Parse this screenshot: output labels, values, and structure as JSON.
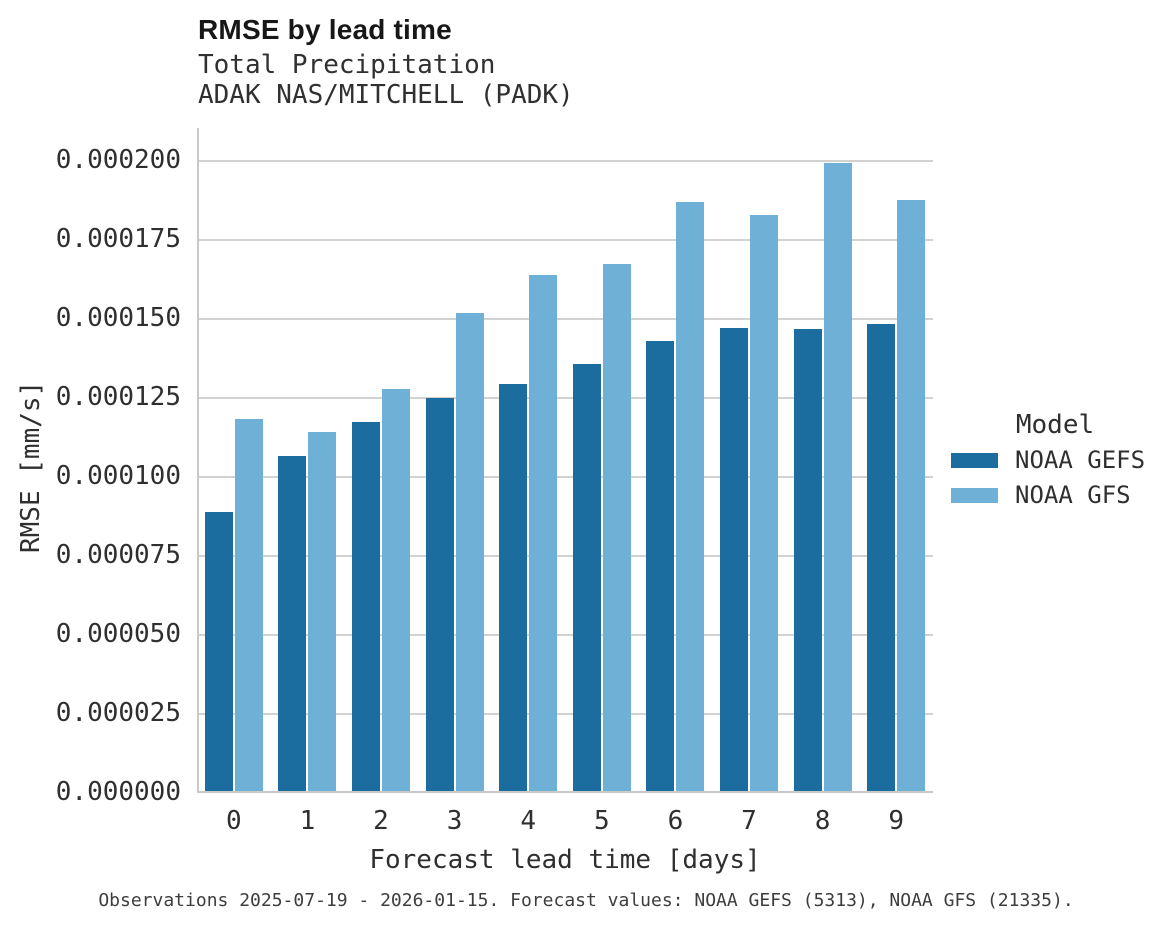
{
  "caption": "Observations 2025-07-19 - 2026-01-15. Forecast values: NOAA GEFS (5313), NOAA GFS (21335).",
  "colors": {
    "gefs": "#1a6d9e",
    "gfs": "#6fb0d7",
    "grid": "#d2d2d2",
    "spine": "#c9c9c9"
  },
  "chart_data": {
    "type": "bar",
    "title": "RMSE by lead time",
    "subtitle_variable": "Total Precipitation",
    "subtitle_station": "ADAK NAS/MITCHELL (PADK)",
    "xlabel": "Forecast lead time [days]",
    "ylabel": "RMSE [mm/s]",
    "legend_title": "Model",
    "legend_position": "right",
    "grid": "horizontal",
    "categories": [
      "0",
      "1",
      "2",
      "3",
      "4",
      "5",
      "6",
      "7",
      "8",
      "9"
    ],
    "series": [
      {
        "name": "NOAA GEFS",
        "color": "#1a6d9e",
        "values": [
          8.89e-05,
          0.0001066,
          0.0001174,
          0.000125,
          0.0001294,
          0.0001358,
          0.0001432,
          0.0001472,
          0.0001468,
          0.0001484
        ]
      },
      {
        "name": "NOAA GFS",
        "color": "#6fb0d7",
        "values": [
          0.0001184,
          0.0001142,
          0.0001278,
          0.0001519,
          0.0001639,
          0.0001674,
          0.0001869,
          0.0001829,
          0.0001994,
          0.0001877
        ]
      }
    ],
    "ylim": [
      0,
      0.00021
    ],
    "yticks": [
      0,
      2.5e-05,
      5e-05,
      7.5e-05,
      0.0001,
      0.000125,
      0.00015,
      0.000175,
      0.0002
    ],
    "ytick_labels": [
      "0.000000",
      "0.000025",
      "0.000050",
      "0.000075",
      "0.000100",
      "0.000125",
      "0.000150",
      "0.000175",
      "0.000200"
    ]
  }
}
